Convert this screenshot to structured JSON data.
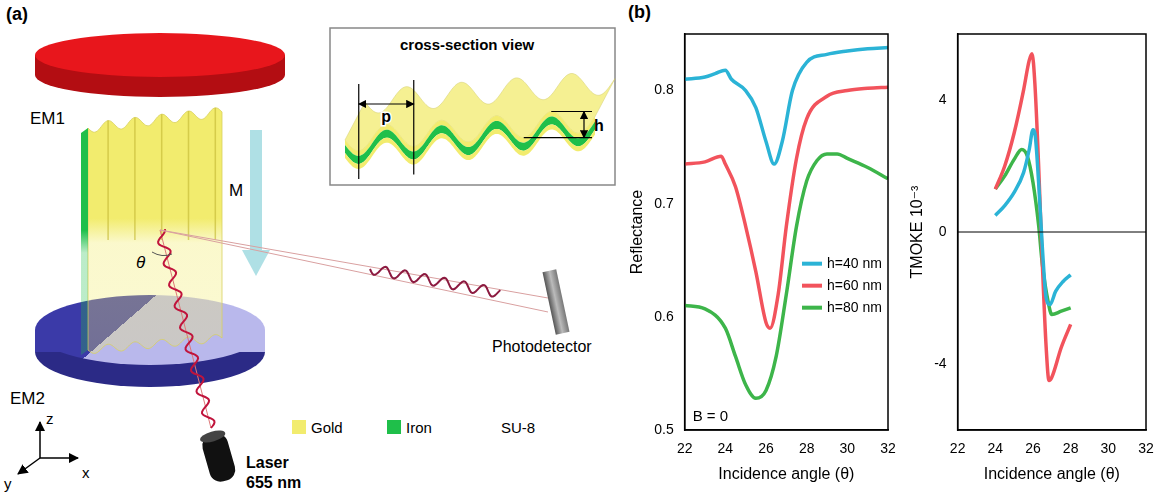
{
  "diagram": {
    "letter": "(a)",
    "labels": {
      "em1": "EM1",
      "em2": "EM2",
      "m": "M",
      "theta": "θ",
      "detector": "Photodetector",
      "laser": [
        "Laser",
        "655 nm"
      ],
      "axes": {
        "x": "x",
        "y": "y",
        "z": "z"
      }
    },
    "inset": {
      "title": "cross-section view",
      "p": "p",
      "h": "h"
    },
    "materials": [
      {
        "name": "Gold",
        "color": "#f2ec6e"
      },
      {
        "name": "Iron",
        "color": "#1fbf4a"
      },
      {
        "name": "SU-8",
        "color": "#ffffff"
      }
    ]
  },
  "panel_b_letter": "(b)",
  "chart_data": [
    {
      "type": "line",
      "x_label": "Incidence angle (θ)",
      "y_label": "Reflectance",
      "xlim": [
        22,
        32
      ],
      "xticks": [
        22,
        24,
        26,
        28,
        30,
        32
      ],
      "ylim": [
        0.5,
        0.85
      ],
      "yticks": [
        0.5,
        0.6,
        0.7,
        0.8
      ],
      "grid": false,
      "legend": "right",
      "annotations": [
        "B = 0"
      ],
      "series": [
        {
          "name": "h=40 nm",
          "color": "#2bb3d6",
          "x": [
            22,
            23,
            23.5,
            24,
            24.3,
            25,
            25.5,
            26,
            26.4,
            26.8,
            27.3,
            28,
            29,
            30,
            31,
            32
          ],
          "values": [
            0.81,
            0.812,
            0.815,
            0.818,
            0.81,
            0.8,
            0.785,
            0.755,
            0.735,
            0.755,
            0.8,
            0.825,
            0.832,
            0.835,
            0.837,
            0.838
          ]
        },
        {
          "name": "h=60 nm",
          "color": "#f2535c",
          "x": [
            22,
            23,
            23.8,
            24,
            24.5,
            25,
            25.5,
            26,
            26.2,
            26.6,
            27,
            27.5,
            28,
            29,
            30,
            31,
            32
          ],
          "values": [
            0.735,
            0.737,
            0.742,
            0.735,
            0.715,
            0.68,
            0.64,
            0.595,
            0.59,
            0.62,
            0.68,
            0.74,
            0.775,
            0.795,
            0.8,
            0.802,
            0.803
          ]
        },
        {
          "name": "h=80 nm",
          "color": "#3db54a",
          "x": [
            22,
            23,
            24,
            24.5,
            25,
            25.5,
            26,
            26.5,
            27,
            27.5,
            28,
            28.5,
            29,
            29.5,
            30,
            31,
            32
          ],
          "values": [
            0.61,
            0.607,
            0.59,
            0.565,
            0.54,
            0.528,
            0.535,
            0.565,
            0.62,
            0.68,
            0.72,
            0.738,
            0.744,
            0.744,
            0.74,
            0.732,
            0.722
          ]
        }
      ]
    },
    {
      "type": "line",
      "x_label": "Incidence angle (θ)",
      "y_label": "TMOKE 10⁻³",
      "xlim": [
        22,
        32
      ],
      "xticks": [
        22,
        24,
        26,
        28,
        30,
        32
      ],
      "ylim": [
        -6,
        6
      ],
      "yticks": [
        -4,
        0,
        4
      ],
      "hline": 0,
      "grid": false,
      "series": [
        {
          "color": "#2bb3d6",
          "x": [
            24,
            24.5,
            25,
            25.5,
            25.8,
            26,
            26.1,
            26.3,
            26.5,
            26.7,
            26.9,
            27.2,
            27.6,
            28
          ],
          "values": [
            0.5,
            0.8,
            1.2,
            1.8,
            2.5,
            3.1,
            3.0,
            1.5,
            -0.5,
            -2.0,
            -2.2,
            -1.8,
            -1.5,
            -1.3
          ]
        },
        {
          "color": "#f2535c",
          "x": [
            24,
            24.5,
            25,
            25.5,
            25.8,
            25.95,
            26.1,
            26.3,
            26.5,
            26.7,
            26.85,
            27,
            27.5,
            28
          ],
          "values": [
            1.3,
            2.0,
            3.0,
            4.3,
            5.2,
            5.4,
            4.5,
            2.0,
            -1.0,
            -3.5,
            -4.5,
            -4.4,
            -3.5,
            -2.8
          ]
        },
        {
          "color": "#3db54a",
          "x": [
            24,
            24.5,
            25,
            25.4,
            25.7,
            26,
            26.3,
            26.5,
            26.8,
            27,
            27.5,
            28
          ],
          "values": [
            1.3,
            1.7,
            2.2,
            2.5,
            2.3,
            1.5,
            0.2,
            -1.0,
            -2.1,
            -2.5,
            -2.4,
            -2.3
          ]
        }
      ]
    }
  ]
}
